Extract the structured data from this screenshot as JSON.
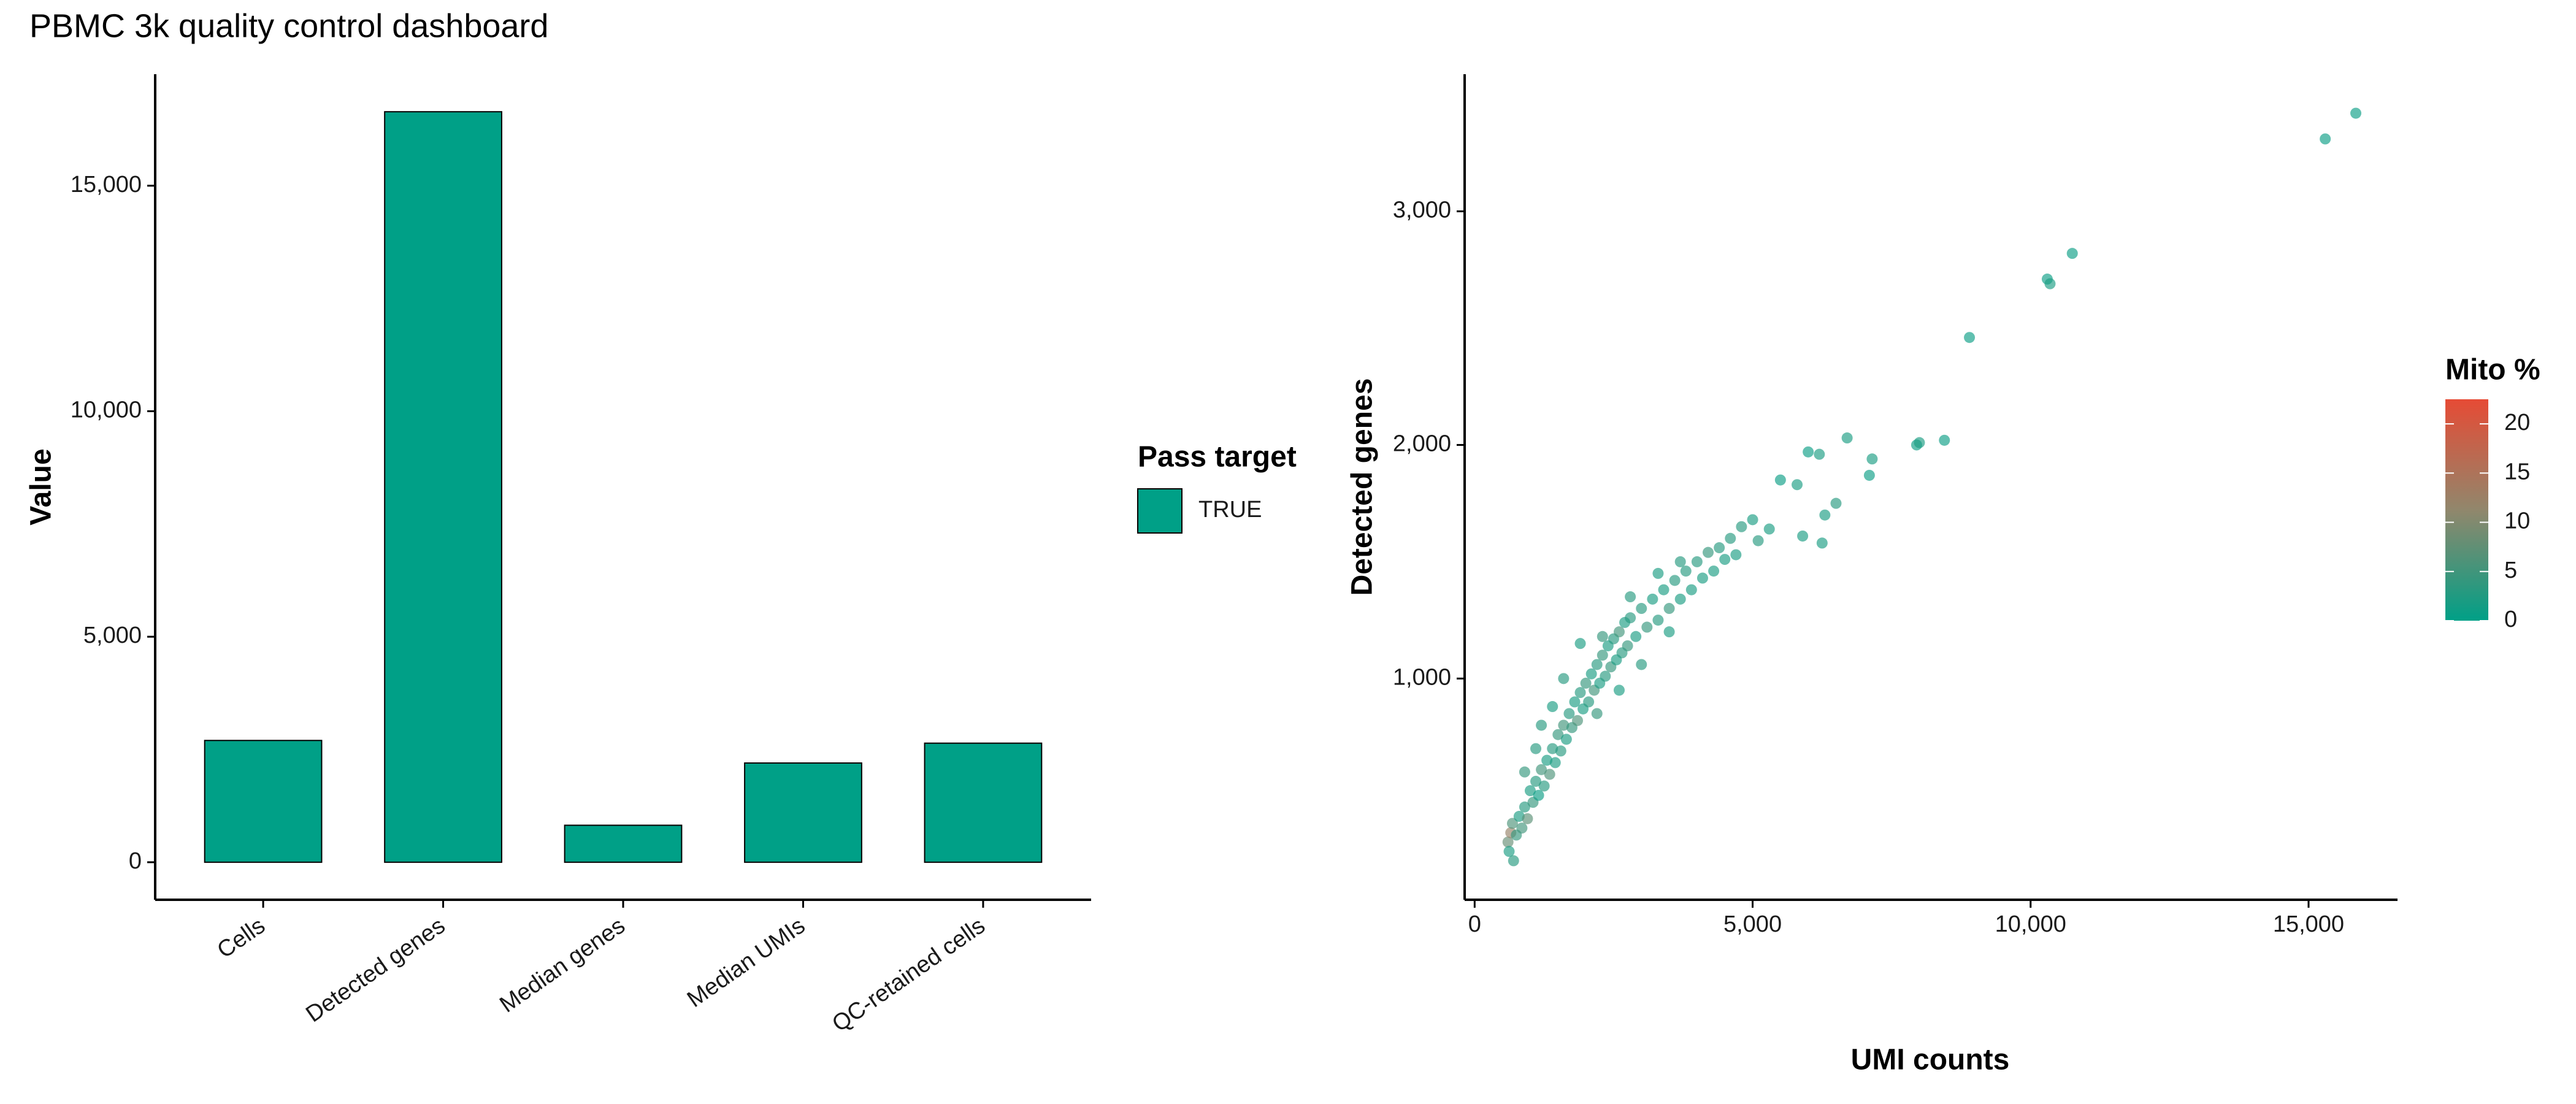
{
  "title": "PBMC 3k quality control dashboard",
  "chart_data": [
    {
      "type": "bar",
      "y_label": "Value",
      "categories": [
        "Cells",
        "Detected genes",
        "Median genes",
        "Median UMIs",
        "QC-retained cells"
      ],
      "legend_title": "Pass target",
      "series": [
        {
          "name": "TRUE",
          "color": "#00a087",
          "values": [
            2700,
            16640,
            820,
            2200,
            2640
          ]
        }
      ],
      "ylim": [
        -832,
        17472
      ],
      "yticks": [
        0,
        {
          "value": 5000,
          "label": "5,000"
        },
        {
          "value": 10000,
          "label": "10,000"
        },
        {
          "value": 15000,
          "label": "15,000"
        }
      ]
    },
    {
      "type": "scatter",
      "x_label": "UMI counts",
      "y_label": "Detected genes",
      "xlim": [
        -180,
        16600
      ],
      "ylim": [
        53,
        3587
      ],
      "xticks": [
        0,
        {
          "value": 5000,
          "label": "5,000"
        },
        {
          "value": 10000,
          "label": "10,000"
        },
        {
          "value": 15000,
          "label": "15,000"
        }
      ],
      "yticks": [
        {
          "value": 1000,
          "label": "1,000"
        },
        {
          "value": 2000,
          "label": "2,000"
        },
        {
          "value": 3000,
          "label": "3,000"
        }
      ],
      "x": [
        600,
        620,
        650,
        700,
        680,
        750,
        800,
        850,
        900,
        950,
        1000,
        1050,
        1100,
        1150,
        1200,
        1250,
        1300,
        1350,
        1400,
        1450,
        1500,
        1550,
        1600,
        1650,
        1700,
        1750,
        1800,
        1850,
        1900,
        1950,
        2000,
        2050,
        2100,
        2150,
        2200,
        2250,
        2300,
        2350,
        2400,
        2450,
        2500,
        2550,
        2600,
        2650,
        2700,
        2750,
        2800,
        2900,
        3000,
        3100,
        3200,
        3300,
        3400,
        3500,
        3600,
        3700,
        3800,
        3900,
        4000,
        4100,
        4200,
        4300,
        4400,
        4500,
        4600,
        4700,
        4800,
        5000,
        5100,
        5300,
        1600,
        1900,
        2300,
        2800,
        3300,
        3700,
        2200,
        2600,
        3000,
        3500,
        1200,
        1400,
        900,
        1100,
        5800,
        5500,
        6300,
        6500,
        5900,
        6250,
        6000,
        6200,
        7100,
        7150,
        6700,
        7950,
        8000,
        8450,
        8900,
        10300,
        10350,
        10750,
        15300,
        15850
      ],
      "y": [
        300,
        260,
        340,
        220,
        380,
        330,
        410,
        360,
        450,
        400,
        520,
        470,
        560,
        500,
        610,
        540,
        650,
        590,
        700,
        640,
        760,
        690,
        800,
        740,
        850,
        790,
        900,
        820,
        940,
        870,
        980,
        900,
        1020,
        950,
        1060,
        980,
        1100,
        1010,
        1140,
        1050,
        1170,
        1080,
        1200,
        1110,
        1240,
        1140,
        1260,
        1180,
        1300,
        1220,
        1340,
        1250,
        1380,
        1300,
        1420,
        1340,
        1460,
        1380,
        1500,
        1430,
        1540,
        1460,
        1560,
        1510,
        1600,
        1530,
        1650,
        1680,
        1590,
        1640,
        1000,
        1150,
        1180,
        1350,
        1450,
        1500,
        850,
        950,
        1060,
        1200,
        800,
        880,
        600,
        700,
        1830,
        1850,
        1700,
        1750,
        1610,
        1580,
        1970,
        1960,
        1870,
        1940,
        2030,
        2000,
        2010,
        2020,
        2460,
        2710,
        2690,
        2820,
        3310,
        3420
      ],
      "color_values": [
        8,
        2,
        12,
        3,
        6,
        4,
        2,
        5,
        3,
        7,
        2,
        4,
        3,
        1,
        5,
        3,
        2,
        6,
        3,
        2,
        4,
        3,
        5,
        2,
        3,
        4,
        2,
        6,
        3,
        2,
        4,
        3,
        2,
        5,
        3,
        2,
        4,
        3,
        2,
        4,
        3,
        2,
        5,
        3,
        2,
        4,
        3,
        2,
        3,
        4,
        2,
        3,
        2,
        4,
        3,
        2,
        3,
        2,
        3,
        2,
        4,
        2,
        3,
        2,
        3,
        2,
        3,
        2,
        3,
        2,
        3,
        2,
        4,
        3,
        2,
        3,
        4,
        2,
        3,
        2,
        3,
        2,
        4,
        3,
        2,
        1,
        2,
        3,
        2,
        2,
        1,
        2,
        1,
        2,
        2,
        1,
        2,
        1,
        1,
        1,
        2,
        1,
        1,
        1
      ],
      "colorbar": {
        "title": "Mito %",
        "lim": [
          0,
          22.5
        ],
        "ticks": [
          0,
          5,
          10,
          15,
          20
        ],
        "colors": [
          "#00a087",
          "#91876c",
          "#e64b35"
        ]
      }
    }
  ]
}
